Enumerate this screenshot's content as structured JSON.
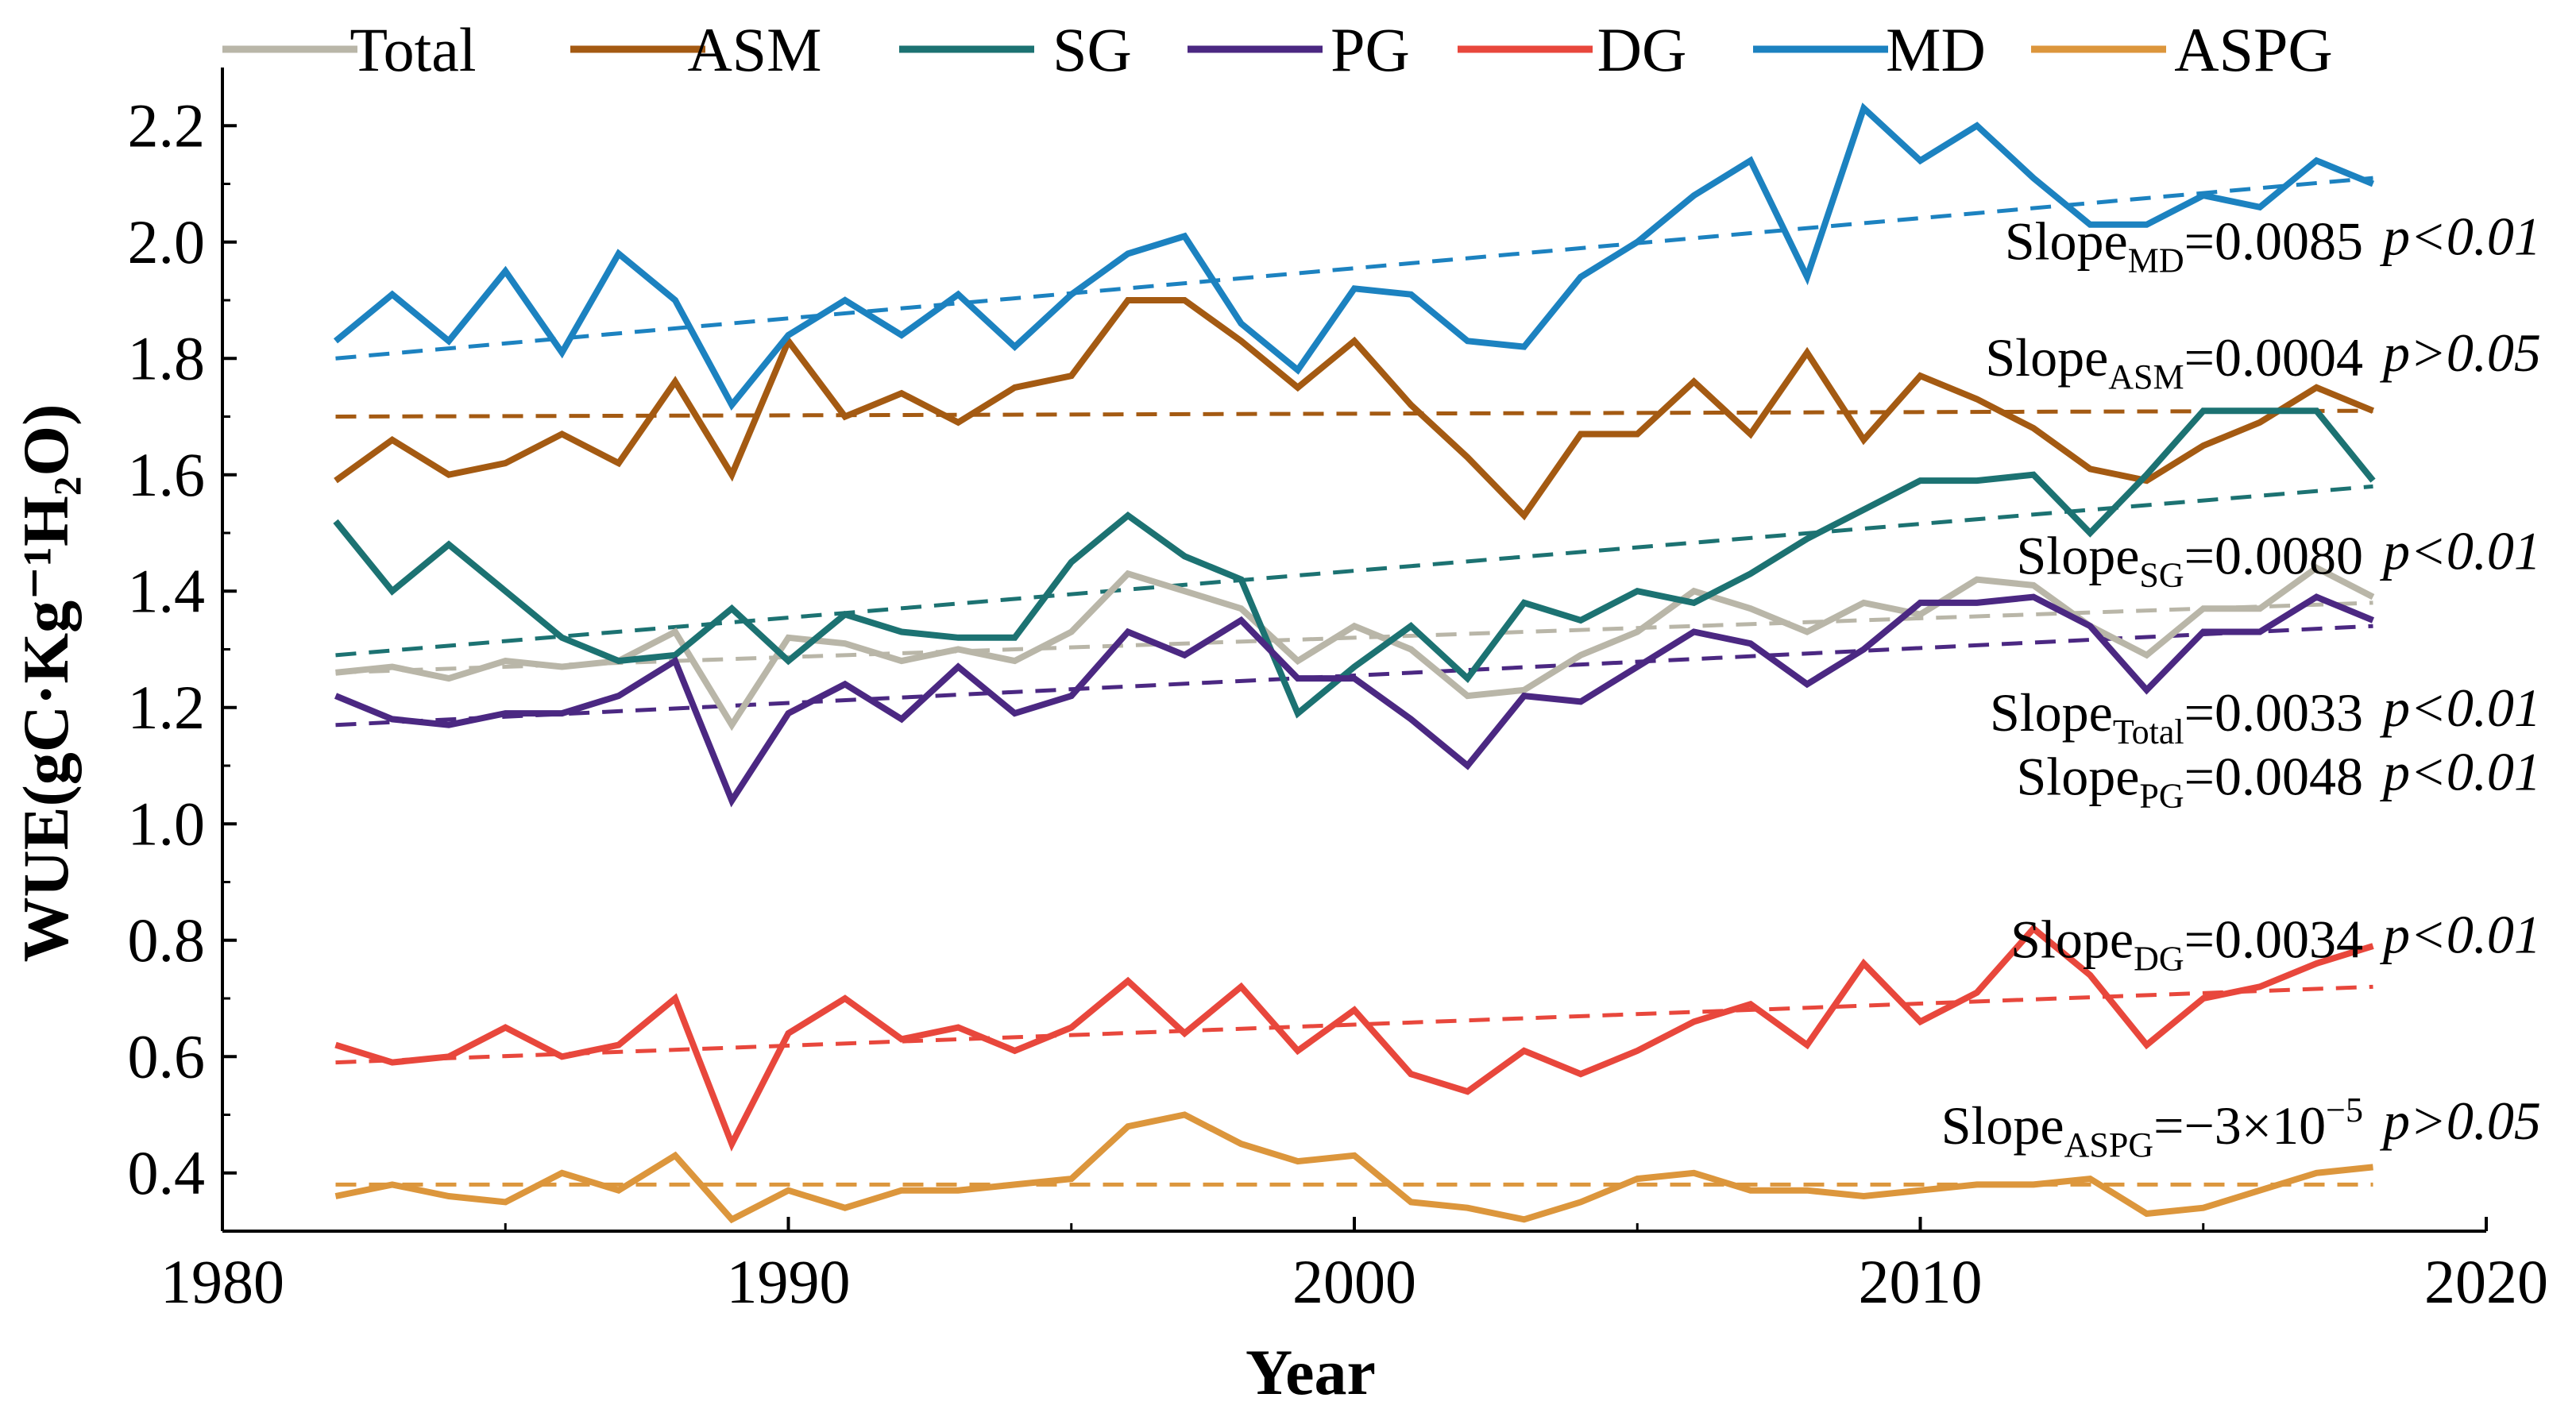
{
  "chart_data": {
    "type": "line",
    "title": "",
    "xlabel": "Year",
    "ylabel": "WUE(gC·Kg⁻¹H₂O)",
    "xlim": [
      1980,
      2020
    ],
    "ylim": [
      0.3,
      2.3
    ],
    "xticks": [
      1980,
      1990,
      2000,
      2010,
      2020
    ],
    "yticks": [
      0.4,
      0.6,
      0.8,
      1.0,
      1.2,
      1.4,
      1.6,
      1.8,
      2.0,
      2.2
    ],
    "legend_position": "top",
    "x": [
      1982,
      1983,
      1984,
      1985,
      1986,
      1987,
      1988,
      1989,
      1990,
      1991,
      1992,
      1993,
      1994,
      1995,
      1996,
      1997,
      1998,
      1999,
      2000,
      2001,
      2002,
      2003,
      2004,
      2005,
      2006,
      2007,
      2008,
      2009,
      2010,
      2011,
      2012,
      2013,
      2014,
      2015,
      2016,
      2017,
      2018
    ],
    "series": [
      {
        "name": "Total",
        "color": "#b9b6a8",
        "values": [
          1.26,
          1.27,
          1.25,
          1.28,
          1.27,
          1.28,
          1.33,
          1.17,
          1.32,
          1.31,
          1.28,
          1.3,
          1.28,
          1.33,
          1.43,
          1.4,
          1.37,
          1.28,
          1.34,
          1.3,
          1.22,
          1.23,
          1.29,
          1.33,
          1.4,
          1.37,
          1.33,
          1.38,
          1.36,
          1.42,
          1.41,
          1.34,
          1.29,
          1.37,
          1.37,
          1.44,
          1.39
        ],
        "trend": [
          1.26,
          1.38
        ]
      },
      {
        "name": "ASM",
        "color": "#a45a12",
        "values": [
          1.59,
          1.66,
          1.6,
          1.62,
          1.67,
          1.62,
          1.76,
          1.6,
          1.83,
          1.7,
          1.74,
          1.69,
          1.75,
          1.77,
          1.9,
          1.9,
          1.83,
          1.75,
          1.83,
          1.72,
          1.63,
          1.53,
          1.67,
          1.67,
          1.76,
          1.67,
          1.81,
          1.66,
          1.77,
          1.73,
          1.68,
          1.61,
          1.59,
          1.65,
          1.69,
          1.75,
          1.71
        ],
        "trend": [
          1.7,
          1.71
        ]
      },
      {
        "name": "SG",
        "color": "#1c7272",
        "values": [
          1.52,
          1.4,
          1.48,
          1.4,
          1.32,
          1.28,
          1.29,
          1.37,
          1.28,
          1.36,
          1.33,
          1.32,
          1.32,
          1.45,
          1.53,
          1.46,
          1.42,
          1.19,
          1.27,
          1.34,
          1.25,
          1.38,
          1.35,
          1.4,
          1.38,
          1.43,
          1.49,
          1.54,
          1.59,
          1.59,
          1.6,
          1.5,
          1.6,
          1.71,
          1.71,
          1.71,
          1.59
        ],
        "trend": [
          1.29,
          1.58
        ]
      },
      {
        "name": "PG",
        "color": "#4b2882",
        "values": [
          1.22,
          1.18,
          1.17,
          1.19,
          1.19,
          1.22,
          1.28,
          1.04,
          1.19,
          1.24,
          1.18,
          1.27,
          1.19,
          1.22,
          1.33,
          1.29,
          1.35,
          1.25,
          1.25,
          1.18,
          1.1,
          1.22,
          1.21,
          1.27,
          1.33,
          1.31,
          1.24,
          1.3,
          1.38,
          1.38,
          1.39,
          1.34,
          1.23,
          1.33,
          1.33,
          1.39,
          1.35
        ],
        "trend": [
          1.17,
          1.34
        ]
      },
      {
        "name": "DG",
        "color": "#e8473c",
        "values": [
          0.62,
          0.59,
          0.6,
          0.65,
          0.6,
          0.62,
          0.7,
          0.45,
          0.64,
          0.7,
          0.63,
          0.65,
          0.61,
          0.65,
          0.73,
          0.64,
          0.72,
          0.61,
          0.68,
          0.57,
          0.54,
          0.61,
          0.57,
          0.61,
          0.66,
          0.69,
          0.62,
          0.76,
          0.66,
          0.71,
          0.82,
          0.74,
          0.62,
          0.7,
          0.72,
          0.76,
          0.79
        ],
        "trend": [
          0.59,
          0.72
        ]
      },
      {
        "name": "MD",
        "color": "#1c82c0",
        "values": [
          1.83,
          1.91,
          1.83,
          1.95,
          1.81,
          1.98,
          1.9,
          1.72,
          1.84,
          1.9,
          1.84,
          1.91,
          1.82,
          1.91,
          1.98,
          2.01,
          1.86,
          1.78,
          1.92,
          1.91,
          1.83,
          1.82,
          1.94,
          2.0,
          2.08,
          2.14,
          1.94,
          2.23,
          2.14,
          2.2,
          2.11,
          2.03,
          2.03,
          2.08,
          2.06,
          2.14,
          2.1
        ],
        "trend": [
          1.8,
          2.11
        ]
      },
      {
        "name": "ASPG",
        "color": "#dc963c",
        "values": [
          0.36,
          0.38,
          0.36,
          0.35,
          0.4,
          0.37,
          0.43,
          0.32,
          0.37,
          0.34,
          0.37,
          0.37,
          0.38,
          0.39,
          0.48,
          0.5,
          0.45,
          0.42,
          0.43,
          0.35,
          0.34,
          0.32,
          0.35,
          0.39,
          0.4,
          0.37,
          0.37,
          0.36,
          0.37,
          0.38,
          0.38,
          0.39,
          0.33,
          0.34,
          0.37,
          0.4,
          0.41
        ],
        "trend": [
          0.38,
          0.38
        ]
      }
    ],
    "annotations": [
      {
        "series": "MD",
        "label": "Slope",
        "sub": "MD",
        "value": "=0.0085",
        "sup": "",
        "p": "p<0.01",
        "y": 1.97
      },
      {
        "series": "ASM",
        "label": "Slope",
        "sub": "ASM",
        "value": "=0.0004",
        "sup": "",
        "p": "p>0.05",
        "y": 1.77
      },
      {
        "series": "SG",
        "label": "Slope",
        "sub": "SG",
        "value": "=0.0080",
        "sup": "",
        "p": "p<0.01",
        "y": 1.43
      },
      {
        "series": "Total",
        "label": "Slope",
        "sub": "Total",
        "value": "=0.0033",
        "sup": "",
        "p": "p<0.01",
        "y": 1.16
      },
      {
        "series": "PG",
        "label": "Slope",
        "sub": "PG",
        "value": "=0.0048",
        "sup": "",
        "p": "p<0.01",
        "y": 1.05
      },
      {
        "series": "DG",
        "label": "Slope",
        "sub": "DG",
        "value": "=0.0034",
        "sup": "",
        "p": "p<0.01",
        "y": 0.77
      },
      {
        "series": "ASPG",
        "label": "Slope",
        "sub": "ASPG",
        "value": "=−3×10",
        "sup": "−5",
        "p": "p>0.05",
        "y": 0.45
      }
    ]
  }
}
